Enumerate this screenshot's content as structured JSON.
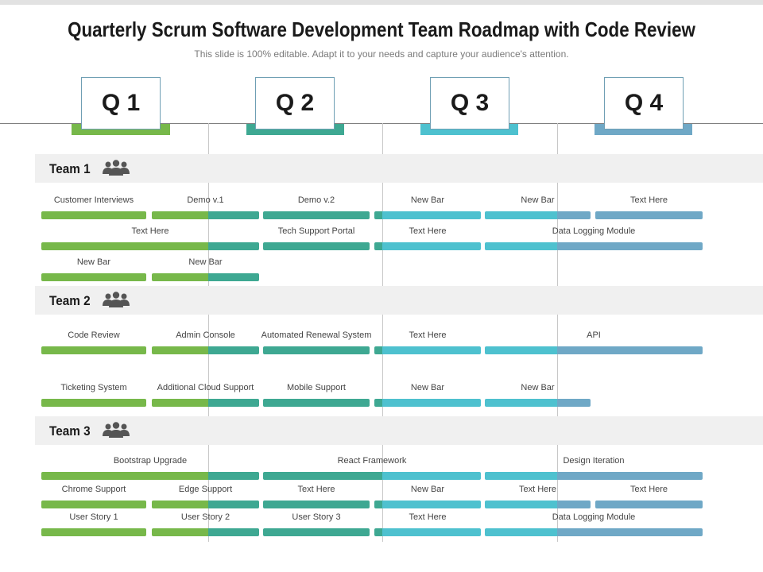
{
  "header": {
    "title": "Quarterly Scrum Software Development Team Roadmap with Code Review",
    "subtitle": "This slide is 100% editable. Adapt it to your needs and capture your audience's attention."
  },
  "colors": {
    "q1": "#77b84a",
    "q2": "#3ea892",
    "q3": "#4ec1cf",
    "q4": "#6fa8c6",
    "team_band": "#f0f0f0",
    "icon": "#555555"
  },
  "quarters": [
    {
      "label": "Q 1"
    },
    {
      "label": "Q 2"
    },
    {
      "label": "Q 3"
    },
    {
      "label": "Q 4"
    }
  ],
  "teams": [
    {
      "name": "Team 1",
      "icon": "users-group-icon",
      "rows": [
        {
          "bars": [
            {
              "label": "Customer Interviews",
              "start": 0,
              "end": 1
            },
            {
              "label": "Demo v.1",
              "start": 1,
              "end": 2
            },
            {
              "label": "Demo v.2",
              "start": 2,
              "end": 3
            },
            {
              "label": "New Bar",
              "start": 3,
              "end": 4
            },
            {
              "label": "New Bar",
              "start": 4,
              "end": 5
            },
            {
              "label": "Text Here",
              "start": 5,
              "end": 6
            }
          ]
        },
        {
          "bars": [
            {
              "label": "Text Here",
              "start": 0,
              "end": 2
            },
            {
              "label": "Tech Support Portal",
              "start": 2,
              "end": 3
            },
            {
              "label": "Text Here",
              "start": 3,
              "end": 4
            },
            {
              "label": "Data Logging Module",
              "start": 4,
              "end": 6
            }
          ]
        },
        {
          "bars": [
            {
              "label": "New Bar",
              "start": 0,
              "end": 1
            },
            {
              "label": "New Bar",
              "start": 1,
              "end": 2
            }
          ]
        }
      ]
    },
    {
      "name": "Team 2",
      "icon": "users-group-icon",
      "rows": [
        {
          "bars": [
            {
              "label": "Code Review",
              "start": 0,
              "end": 1
            },
            {
              "label": "Admin Console",
              "start": 1,
              "end": 2
            },
            {
              "label": "Automated Renewal System",
              "start": 2,
              "end": 3
            },
            {
              "label": "Text Here",
              "start": 3,
              "end": 4
            },
            {
              "label": "API",
              "start": 4,
              "end": 6
            }
          ]
        },
        {
          "bars": [
            {
              "label": "Ticketing System",
              "start": 0,
              "end": 1
            },
            {
              "label": "Additional Cloud Support",
              "start": 1,
              "end": 2
            },
            {
              "label": "Mobile Support",
              "start": 2,
              "end": 3
            },
            {
              "label": "New Bar",
              "start": 3,
              "end": 4
            },
            {
              "label": "New Bar",
              "start": 4,
              "end": 5
            }
          ]
        }
      ]
    },
    {
      "name": "Team 3",
      "icon": "users-group-icon",
      "rows": [
        {
          "bars": [
            {
              "label": "Bootstrap Upgrade",
              "start": 0,
              "end": 2
            },
            {
              "label": "React Framework",
              "start": 2,
              "end": 4
            },
            {
              "label": "Design Iteration",
              "start": 4,
              "end": 6
            }
          ]
        },
        {
          "bars": [
            {
              "label": "Chrome Support",
              "start": 0,
              "end": 1
            },
            {
              "label": "Edge Support",
              "start": 1,
              "end": 2
            },
            {
              "label": "Text Here",
              "start": 2,
              "end": 3
            },
            {
              "label": "New Bar",
              "start": 3,
              "end": 4
            },
            {
              "label": "Text Here",
              "start": 4,
              "end": 5
            },
            {
              "label": "Text Here",
              "start": 5,
              "end": 6
            }
          ]
        },
        {
          "bars": [
            {
              "label": "User Story 1",
              "start": 0,
              "end": 1
            },
            {
              "label": "User Story 2",
              "start": 1,
              "end": 2
            },
            {
              "label": "User Story 3",
              "start": 2,
              "end": 3
            },
            {
              "label": "Text Here",
              "start": 3,
              "end": 4
            },
            {
              "label": "Data Logging Module",
              "start": 4,
              "end": 6
            }
          ]
        }
      ]
    }
  ]
}
